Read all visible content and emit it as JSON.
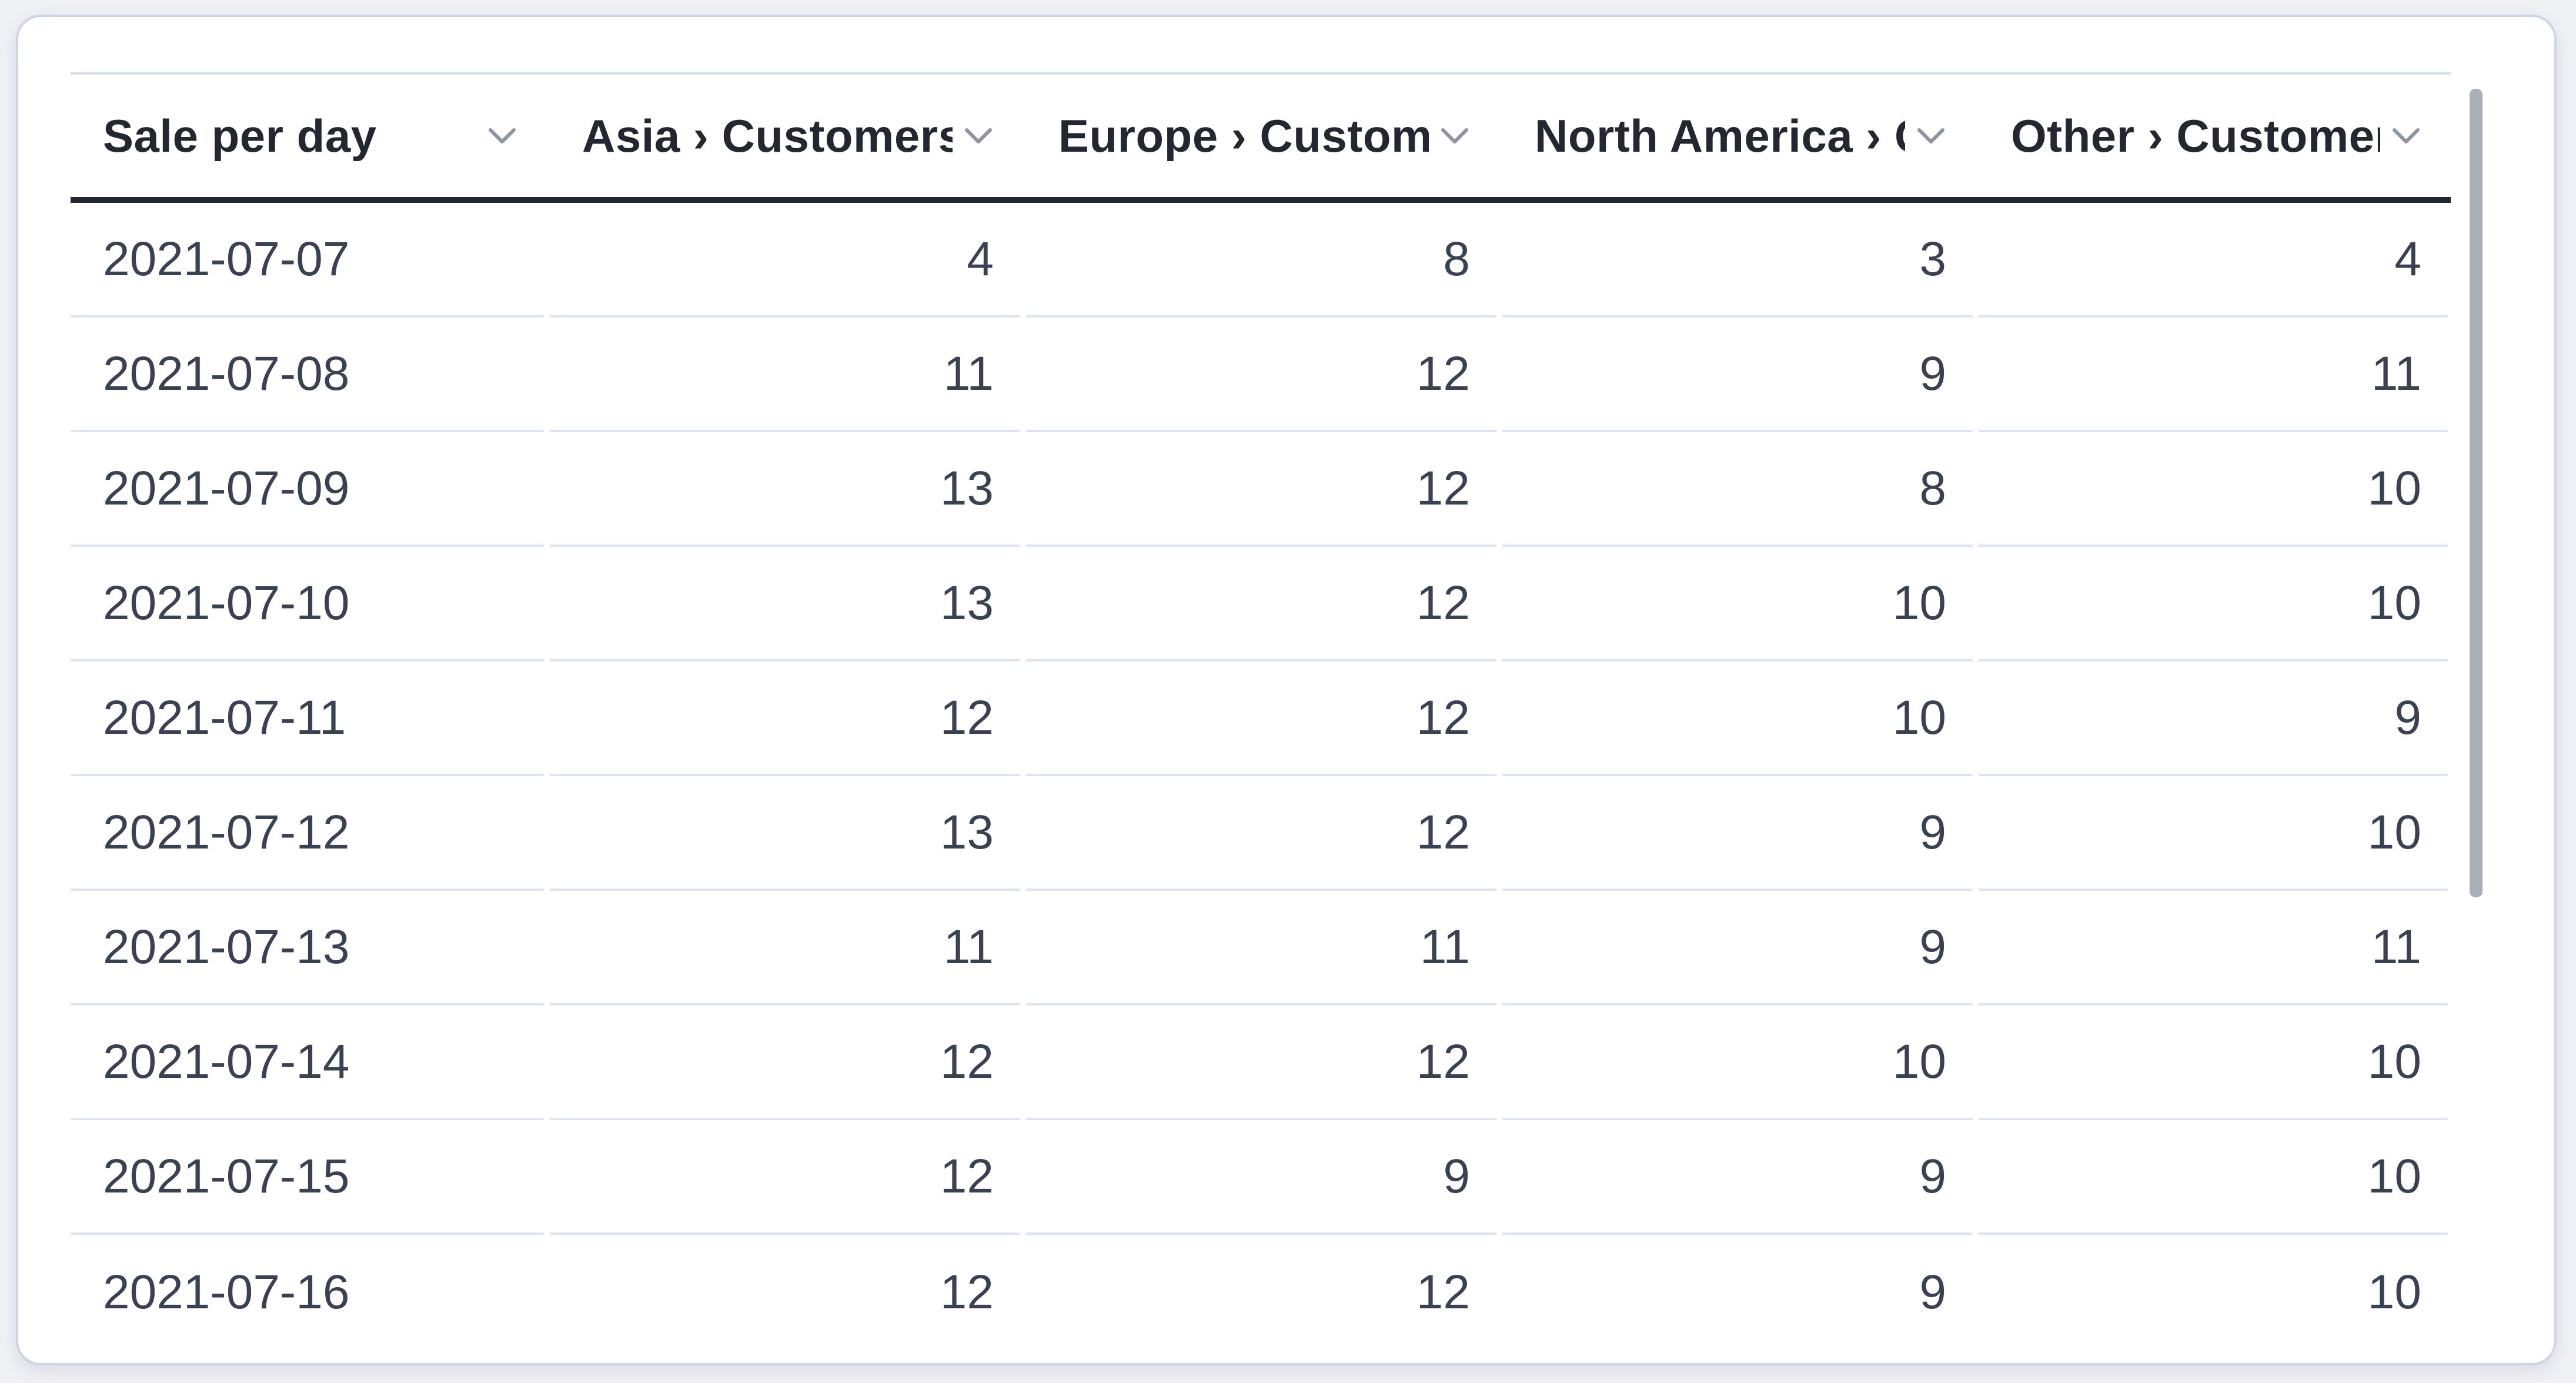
{
  "card": {
    "type": "table-visualization-card"
  },
  "colors": {
    "page_background": "#eff1f5",
    "card_background": "#ffffff",
    "card_border": "#ccd5e3",
    "header_text": "#23272f",
    "header_rule": "#22262f",
    "table_top_border": "#dce3ee",
    "row_separator": "#dfe5f0",
    "body_text": "#3a4150",
    "chevron": "#8c94a2",
    "scrollbar_thumb": "#a9aeb7"
  },
  "icons": {
    "header_sort_icon": "chevron-down-icon"
  },
  "table": {
    "columns": [
      {
        "label": "Sale per day",
        "align": "left"
      },
      {
        "label": "Asia › Customers",
        "align": "right"
      },
      {
        "label": "Europe › Customers",
        "align": "right"
      },
      {
        "label": "North America › Customers",
        "align": "right"
      },
      {
        "label": "Other › Customers",
        "align": "right"
      }
    ],
    "rows": [
      [
        "2021-07-07",
        "4",
        "8",
        "3",
        "4"
      ],
      [
        "2021-07-08",
        "11",
        "12",
        "9",
        "11"
      ],
      [
        "2021-07-09",
        "13",
        "12",
        "8",
        "10"
      ],
      [
        "2021-07-10",
        "13",
        "12",
        "10",
        "10"
      ],
      [
        "2021-07-11",
        "12",
        "12",
        "10",
        "9"
      ],
      [
        "2021-07-12",
        "13",
        "12",
        "9",
        "10"
      ],
      [
        "2021-07-13",
        "11",
        "11",
        "9",
        "11"
      ],
      [
        "2021-07-14",
        "12",
        "12",
        "10",
        "10"
      ],
      [
        "2021-07-15",
        "12",
        "9",
        "9",
        "10"
      ],
      [
        "2021-07-16",
        "12",
        "12",
        "9",
        "10"
      ]
    ]
  },
  "scrollbar": {
    "orientation": "vertical",
    "thumb_visible": true
  }
}
